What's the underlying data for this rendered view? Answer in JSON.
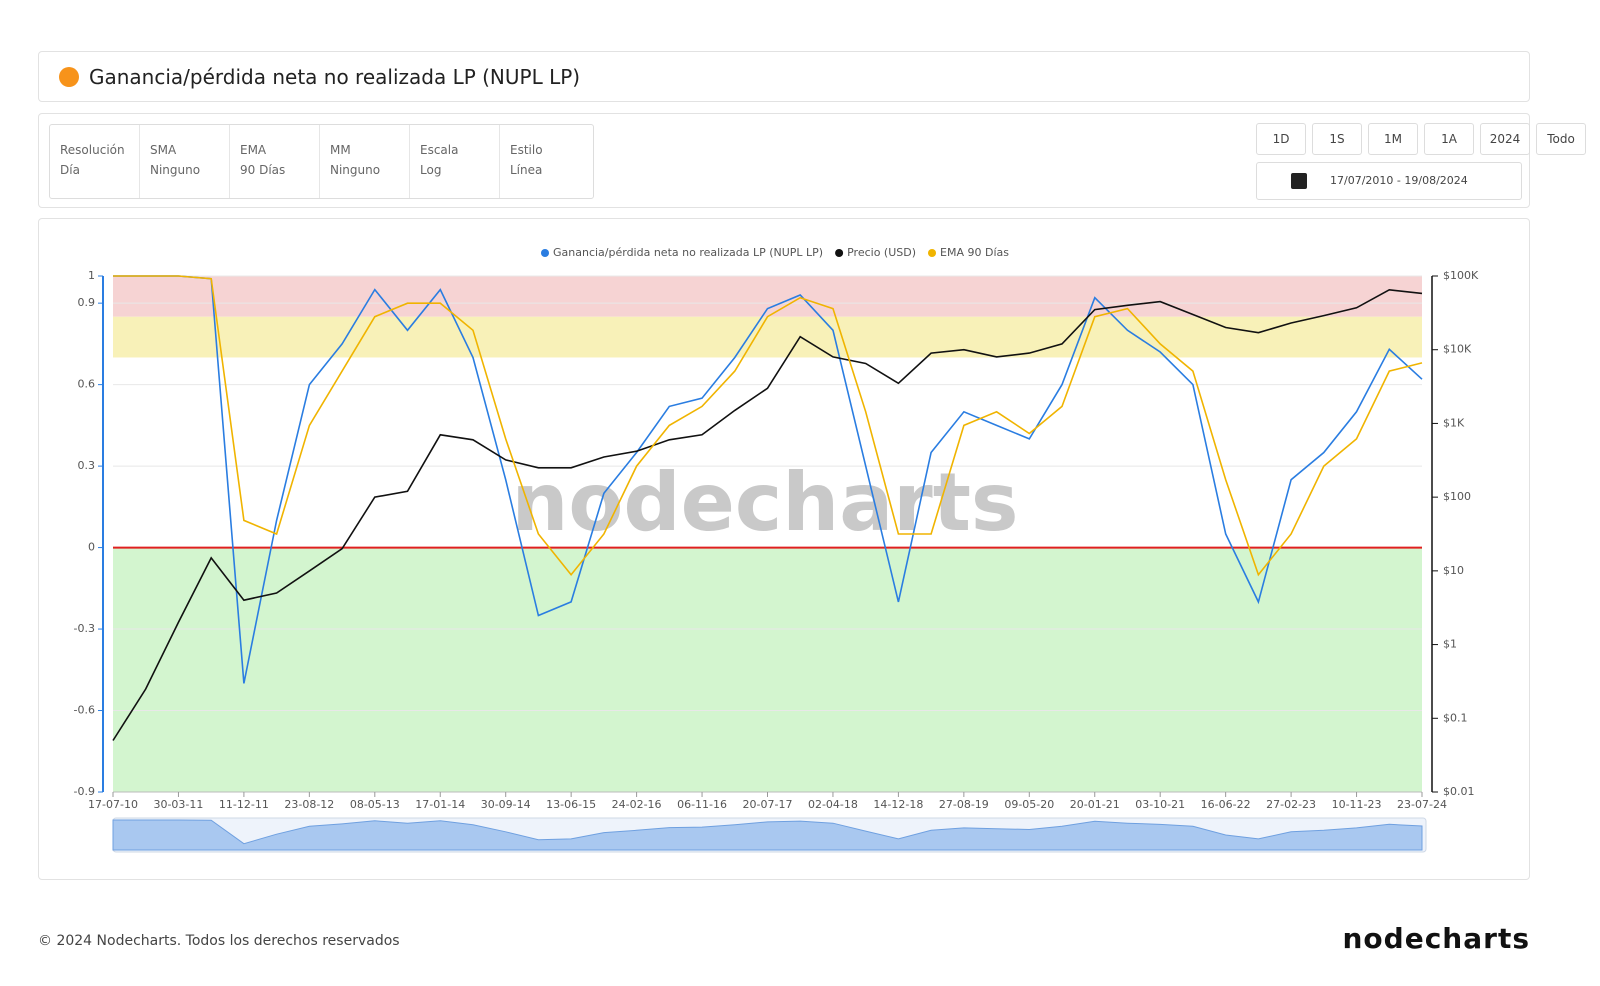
{
  "header": {
    "title": "Ganancia/pérdida neta no realizada LP (NUPL LP)"
  },
  "controls": [
    {
      "label": "Resolución",
      "value": "Día"
    },
    {
      "label": "SMA",
      "value": "Ninguno"
    },
    {
      "label": "EMA",
      "value": "90 Días"
    },
    {
      "label": "MM",
      "value": "Ninguno"
    },
    {
      "label": "Escala",
      "value": "Log"
    },
    {
      "label": "Estilo",
      "value": "Línea"
    }
  ],
  "range_buttons": [
    "1D",
    "1S",
    "1M",
    "1A",
    "2024",
    "Todo"
  ],
  "date_range": "17/07/2010 - 19/08/2024",
  "watermark": "nodecharts",
  "footer": {
    "copyright": "© 2024 Nodecharts. Todos los derechos reservados",
    "logo": "nodecharts"
  },
  "chart_data": {
    "type": "line",
    "categories": [
      "17-07-10",
      null,
      "30-03-11",
      null,
      "11-12-11",
      null,
      "23-08-12",
      null,
      "08-05-13",
      null,
      "17-01-14",
      null,
      "30-09-14",
      null,
      "13-06-15",
      null,
      "24-02-16",
      null,
      "06-11-16",
      null,
      "20-07-17",
      null,
      "02-04-18",
      null,
      "14-12-18",
      null,
      "27-08-19",
      null,
      "09-05-20",
      null,
      "20-01-21",
      null,
      "03-10-21",
      null,
      "16-06-22",
      null,
      "27-02-23",
      null,
      "10-11-23",
      null,
      "23-07-24"
    ],
    "series": [
      {
        "name": "Ganancia/pérdida neta no realizada LP (NUPL LP)",
        "color": "#2a7de1",
        "values": [
          1,
          1,
          1,
          0.99,
          -0.5,
          0.1,
          0.6,
          0.75,
          0.95,
          0.8,
          0.95,
          0.7,
          0.25,
          -0.25,
          -0.2,
          0.2,
          0.35,
          0.52,
          0.55,
          0.7,
          0.88,
          0.93,
          0.8,
          0.3,
          -0.2,
          0.35,
          0.5,
          0.45,
          0.4,
          0.6,
          0.92,
          0.8,
          0.72,
          0.6,
          0.05,
          -0.2,
          0.25,
          0.35,
          0.5,
          0.73,
          0.62
        ]
      },
      {
        "name": "Precio (USD)",
        "color": "#111111",
        "axis": "y2",
        "values": [
          0.05,
          0.25,
          2,
          15,
          4,
          5,
          10,
          20,
          100,
          120,
          700,
          600,
          320,
          250,
          250,
          350,
          420,
          600,
          700,
          1500,
          3000,
          15000,
          8000,
          6500,
          3500,
          9000,
          10000,
          8000,
          9000,
          12000,
          35000,
          40000,
          45000,
          30000,
          20000,
          17000,
          23000,
          29000,
          37000,
          65000,
          58000
        ]
      },
      {
        "name": "EMA 90 Días",
        "color": "#f0b400",
        "values": [
          1,
          1,
          1,
          0.99,
          0.1,
          0.05,
          0.45,
          0.65,
          0.85,
          0.9,
          0.9,
          0.8,
          0.4,
          0.05,
          -0.1,
          0.05,
          0.3,
          0.45,
          0.52,
          0.65,
          0.85,
          0.92,
          0.88,
          0.5,
          0.05,
          0.05,
          0.45,
          0.5,
          0.42,
          0.52,
          0.85,
          0.88,
          0.75,
          0.65,
          0.25,
          -0.1,
          0.05,
          0.3,
          0.4,
          0.65,
          0.68
        ]
      }
    ],
    "ylim": [
      -0.9,
      1
    ],
    "yticks": [
      -0.9,
      -0.6,
      -0.3,
      0,
      0.3,
      0.6,
      0.9,
      1
    ],
    "y2lim": [
      0.01,
      100000
    ],
    "y2log": true,
    "y2ticks": [
      {
        "value": 0.01,
        "label": "$0.01"
      },
      {
        "value": 0.1,
        "label": "$0.1"
      },
      {
        "value": 1,
        "label": "$1"
      },
      {
        "value": 10,
        "label": "$10"
      },
      {
        "value": 100,
        "label": "$100"
      },
      {
        "value": 1000,
        "label": "$1K"
      },
      {
        "value": 10000,
        "label": "$10K"
      },
      {
        "value": 100000,
        "label": "$100K"
      }
    ],
    "grid": true,
    "legend": "top",
    "bands": [
      {
        "from": 0.85,
        "to": 1,
        "color": "#f6d3d3"
      },
      {
        "from": 0.7,
        "to": 0.85,
        "color": "#f8f1b8"
      },
      {
        "from": -0.9,
        "to": 0,
        "color": "#d3f5cf"
      }
    ],
    "zero_line": {
      "value": 0,
      "color": "#e02020"
    }
  }
}
